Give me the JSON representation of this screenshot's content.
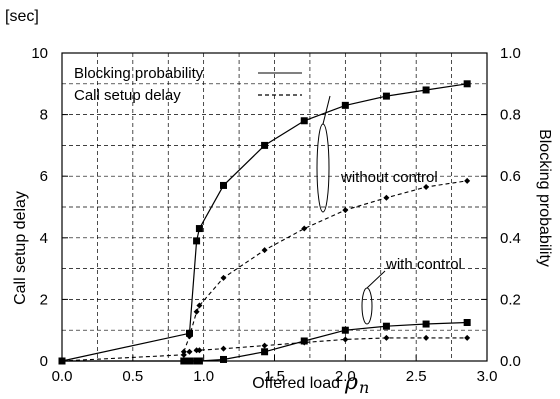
{
  "chart_data": {
    "type": "line",
    "unit_label": "[sec]",
    "xlabel": "Offered load",
    "xlabel_symbol": "ρ",
    "xlabel_subscript": "n",
    "ylabel_left": "Call setup delay",
    "ylabel_right": "Blocking  probability",
    "xlim": [
      0.0,
      3.0
    ],
    "ylim_left": [
      0,
      10
    ],
    "ylim_right": [
      0.0,
      1.0
    ],
    "x_ticks": [
      "0.0",
      "0.5",
      "1.0",
      "1.5",
      "2.0",
      "2.5",
      "3.0"
    ],
    "y_ticks_left": [
      "0",
      "2",
      "4",
      "6",
      "8",
      "10"
    ],
    "y_ticks_right": [
      "0.0",
      "0.2",
      "0.4",
      "0.6",
      "0.8",
      "1.0"
    ],
    "grid": true,
    "legend_placement": "top-left",
    "legend": [
      {
        "label": "Blocking probability",
        "style": "solid"
      },
      {
        "label": "Call setup delay",
        "style": "dashed"
      }
    ],
    "annotations": {
      "without_control": "without control",
      "with_control": "with control"
    },
    "series": [
      {
        "name": "Blocking probability",
        "group": "without control",
        "axis": "right",
        "style": "solid",
        "marker": "square",
        "x": [
          0.0,
          0.9,
          0.95,
          0.97,
          1.14,
          1.43,
          1.71,
          2.0,
          2.29,
          2.57,
          2.86
        ],
        "y": [
          0.0,
          0.09,
          0.39,
          0.43,
          0.57,
          0.7,
          0.78,
          0.83,
          0.86,
          0.88,
          0.9
        ]
      },
      {
        "name": "Call setup delay",
        "group": "without control",
        "axis": "left",
        "style": "dashed",
        "marker": "diamond",
        "x": [
          0.86,
          0.9,
          0.95,
          0.97,
          1.14,
          1.43,
          1.71,
          2.0,
          2.29,
          2.57,
          2.86
        ],
        "y": [
          0.3,
          0.8,
          1.6,
          1.8,
          2.7,
          3.6,
          4.3,
          4.9,
          5.3,
          5.65,
          5.85
        ]
      },
      {
        "name": "Blocking probability",
        "group": "with control",
        "axis": "right",
        "style": "solid",
        "marker": "square",
        "x": [
          0.0,
          0.86,
          0.9,
          0.95,
          0.97,
          1.14,
          1.43,
          1.71,
          2.0,
          2.29,
          2.57,
          2.86
        ],
        "y": [
          0.0,
          0.0,
          0.0,
          0.0,
          0.0,
          0.005,
          0.03,
          0.065,
          0.1,
          0.113,
          0.12,
          0.125
        ]
      },
      {
        "name": "Call setup delay",
        "group": "with control",
        "axis": "left",
        "style": "dashed",
        "marker": "diamond",
        "x": [
          0.0,
          0.86,
          0.9,
          0.95,
          0.97,
          1.14,
          1.43,
          1.71,
          2.0,
          2.29,
          2.57,
          2.86
        ],
        "y": [
          0.0,
          0.2,
          0.3,
          0.35,
          0.35,
          0.4,
          0.5,
          0.6,
          0.7,
          0.75,
          0.75,
          0.75
        ]
      }
    ]
  }
}
